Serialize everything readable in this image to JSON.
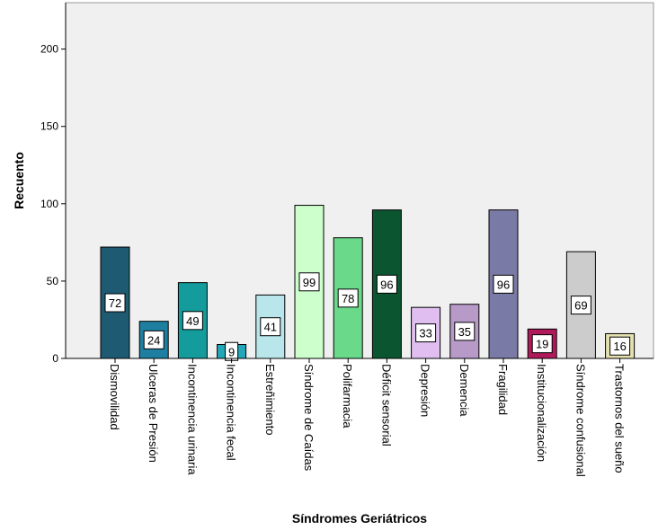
{
  "chart_data": {
    "type": "bar",
    "xlabel": "Síndromes Geriátricos",
    "ylabel": "Recuento",
    "ylim": [
      0,
      230
    ],
    "yticks": [
      0,
      50,
      100,
      150,
      200
    ],
    "grid": false,
    "categories": [
      "Dismovilidad",
      "Ulceras de Presión",
      "Incontinencia urinaria",
      "Incontinencia fecal",
      "Estreñimiento",
      "Síndrome de Caídas",
      "Polifarmacia",
      "Déficit sensorial",
      "Depresión",
      "Demencia",
      "Fragilidad",
      "Institucionalización",
      "Síndrome confusional",
      "Trastornos del sueño"
    ],
    "values": [
      72,
      24,
      49,
      9,
      41,
      99,
      78,
      96,
      33,
      35,
      96,
      19,
      69,
      16
    ],
    "colors": [
      "#1f5a73",
      "#1f7fa0",
      "#149b9b",
      "#22a7b8",
      "#b8e6ea",
      "#ccffcc",
      "#6ad98a",
      "#0b5530",
      "#e0bff0",
      "#b89ac8",
      "#7a7aa6",
      "#b0195a",
      "#cccccc",
      "#e4e0b0"
    ]
  }
}
